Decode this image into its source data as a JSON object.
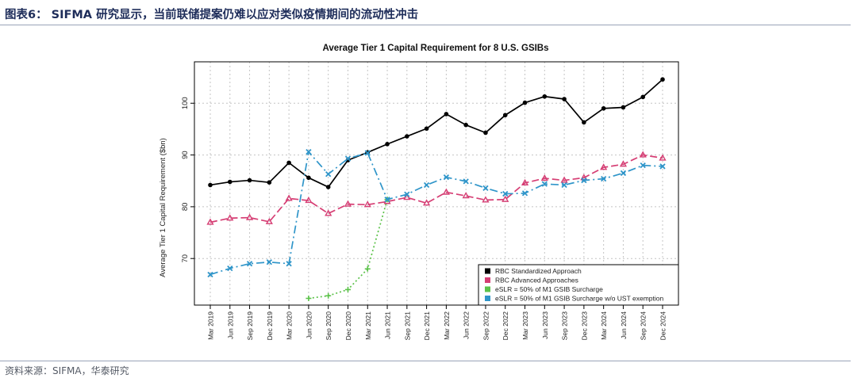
{
  "caption": "图表6： SIFMA 研究显示，当前联储提案仍难以应对类似疫情期间的流动性冲击",
  "source": "资料来源：SIFMA，华泰研究",
  "chart_data": {
    "type": "line",
    "title": "Average Tier 1 Capital Requirement for 8 U.S. GSIBs",
    "xlabel": "",
    "ylabel": "Average Tier 1 Capital Requirement ($bn)",
    "ylim": [
      61,
      108
    ],
    "yticks": [
      70,
      80,
      90,
      100
    ],
    "grid": true,
    "legend_position": "bottom-right",
    "categories": [
      "Mar 2019",
      "Jun 2019",
      "Sep 2019",
      "Dec 2019",
      "Mar 2020",
      "Jun 2020",
      "Sep 2020",
      "Dec 2020",
      "Mar 2021",
      "Jun 2021",
      "Sep 2021",
      "Dec 2021",
      "Mar 2022",
      "Jun 2022",
      "Sep 2022",
      "Dec 2022",
      "Mar 2023",
      "Jun 2023",
      "Sep 2023",
      "Dec 2023",
      "Mar 2024",
      "Jun 2024",
      "Sep 2024",
      "Dec 2024"
    ],
    "series": [
      {
        "name": "RBC Standardized Approach",
        "color": "#000000",
        "dash": "",
        "marker": "circle",
        "values": [
          84.2,
          84.8,
          85.1,
          84.7,
          88.5,
          85.6,
          83.8,
          89.0,
          90.5,
          92.1,
          93.6,
          95.1,
          97.9,
          95.8,
          94.3,
          97.7,
          100.1,
          101.3,
          100.8,
          96.3,
          99.0,
          99.2,
          101.2,
          104.6
        ]
      },
      {
        "name": "RBC Advanced Approaches",
        "color": "#d63e74",
        "dash": "9,4",
        "marker": "triangle",
        "values": [
          77.0,
          77.8,
          77.9,
          77.1,
          81.6,
          81.2,
          78.7,
          80.5,
          80.4,
          81.0,
          81.8,
          80.7,
          82.8,
          82.1,
          81.3,
          81.4,
          84.6,
          85.5,
          85.1,
          85.6,
          87.6,
          88.2,
          90.0,
          89.4
        ]
      },
      {
        "name": "eSLR = 50% of M1 GSIB Surcharge",
        "color": "#5cc24a",
        "dash": "2,3",
        "marker": "plus",
        "values": [
          null,
          null,
          null,
          null,
          null,
          62.3,
          62.8,
          64.0,
          68.0,
          81.4,
          null,
          null,
          null,
          null,
          null,
          null,
          null,
          null,
          null,
          null,
          null,
          null,
          null,
          null
        ]
      },
      {
        "name": "eSLR = 50% of M1 GSIB Surcharge w/o UST exemption",
        "color": "#2f95c9",
        "dash": "10,4,2,4",
        "marker": "x",
        "values": [
          66.9,
          68.1,
          69.0,
          69.3,
          69.0,
          90.6,
          86.3,
          89.3,
          90.4,
          81.4,
          82.4,
          84.2,
          85.7,
          84.9,
          83.6,
          82.5,
          82.6,
          84.4,
          84.2,
          85.1,
          85.4,
          86.5,
          88.0,
          87.8
        ]
      }
    ]
  }
}
